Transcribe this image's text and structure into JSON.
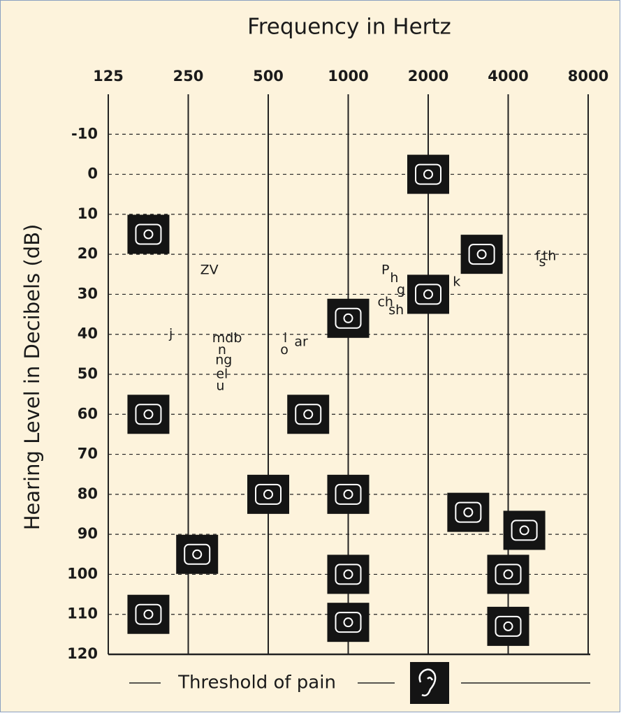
{
  "chart_data": {
    "type": "audiogram",
    "title": "Frequency in Hertz",
    "y_label": "Hearing Level  in Decibels (dB)",
    "annotation": "Threshold of pain",
    "xlim": [
      125,
      8000
    ],
    "xticks": [
      125,
      250,
      500,
      1000,
      2000,
      4000,
      8000
    ],
    "log_x": true,
    "ylim": [
      -20,
      120
    ],
    "yticks": [
      -10,
      0,
      10,
      20,
      30,
      40,
      50,
      60,
      70,
      80,
      90,
      100,
      110,
      120
    ],
    "grid": true,
    "icons": {
      "x": [
        2000,
        177,
        3180,
        2000,
        1000,
        177,
        707,
        500,
        1000,
        2830,
        4600,
        270,
        1000,
        4000,
        177,
        1000,
        4000
      ],
      "y": [
        0,
        15,
        20,
        30,
        36,
        60,
        60,
        80,
        80,
        84.5,
        89,
        95,
        100,
        100,
        110,
        112,
        113
      ],
      "color": "#141414"
    },
    "phonemes": {
      "labels": [
        "ZV",
        "j",
        "mdb",
        "n",
        "ng",
        "el",
        "u",
        "i",
        "o",
        "ar",
        "P",
        "h",
        "g",
        "ch",
        "sh",
        "k",
        "f",
        "s",
        "th"
      ],
      "x": [
        300,
        215,
        350,
        335,
        340,
        335,
        330,
        580,
        575,
        665,
        1380,
        1490,
        1580,
        1380,
        1516,
        2560,
        5170,
        5380,
        5720
      ],
      "y": [
        24,
        40,
        41,
        44,
        46.5,
        50,
        53,
        41,
        44,
        42,
        24,
        26,
        29,
        32,
        34,
        27,
        20.5,
        22,
        20.5
      ]
    }
  }
}
